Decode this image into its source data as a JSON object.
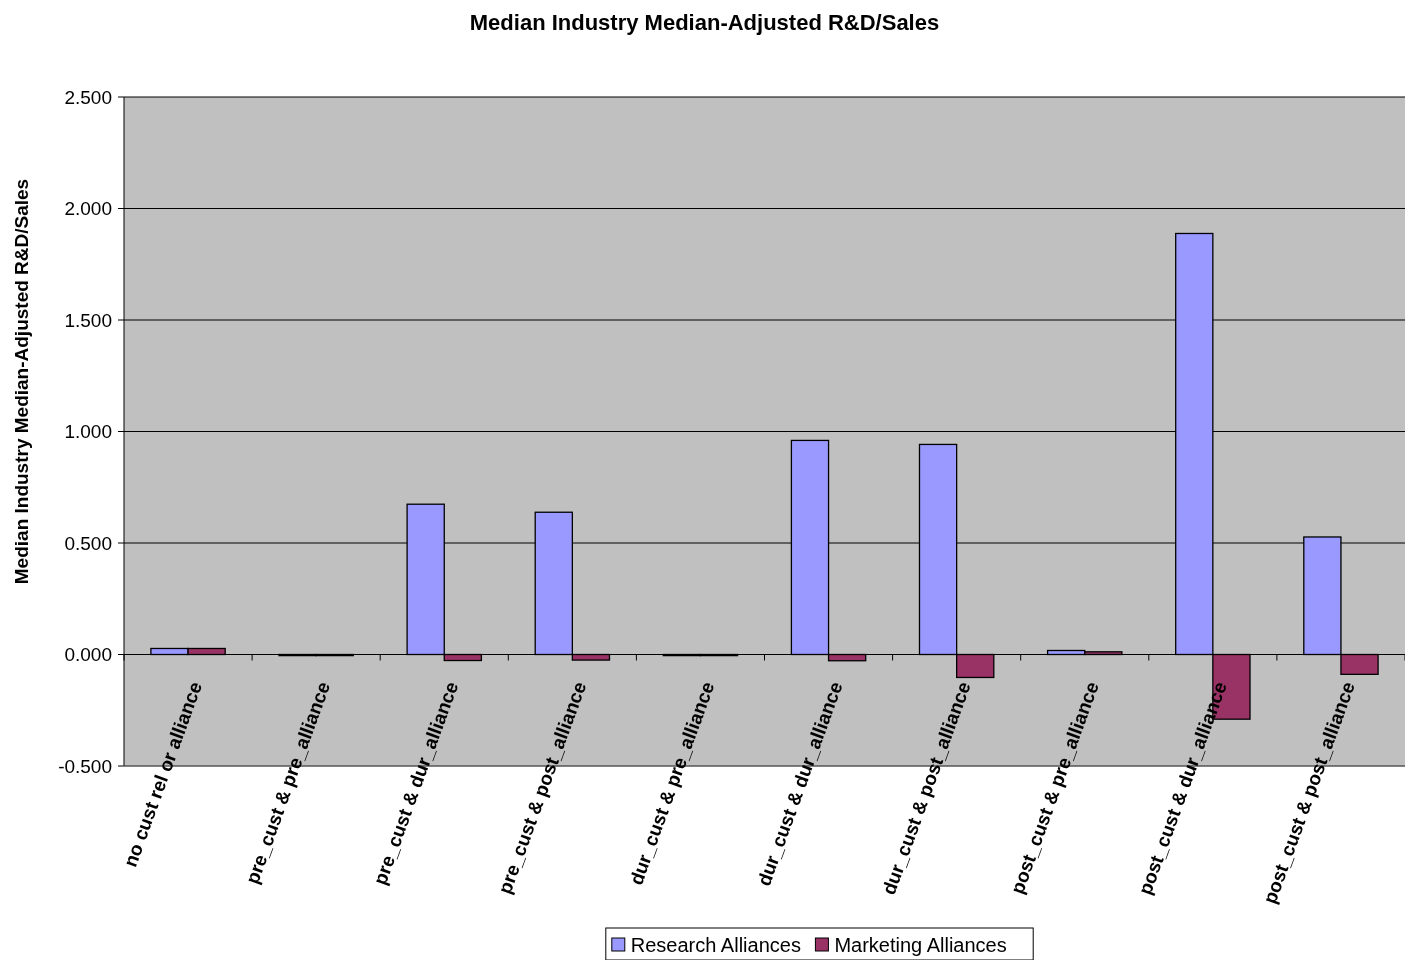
{
  "chart_data": {
    "type": "bar",
    "title": "Median Industry Median-Adjusted R&D/Sales",
    "ylabel": "Median Industry Median-Adjusted R&D/Sales",
    "categories": [
      "no cust rel or alliance",
      "pre_cust & pre_alliance",
      "pre_cust & dur_alliance",
      "pre_cust & post_alliance",
      "dur_cust & pre_alliance",
      "dur_cust & dur_alliance",
      "dur_cust & post_alliance",
      "post_cust & pre_alliance",
      "post_cust & dur_alliance",
      "post_cust & post_alliance"
    ],
    "series": [
      {
        "name": "Research Alliances",
        "color": "#9999ff",
        "values": [
          0.027,
          -0.005,
          0.674,
          0.638,
          -0.005,
          0.96,
          0.942,
          0.018,
          1.888,
          0.527
        ]
      },
      {
        "name": "Marketing Alliances",
        "color": "#993366",
        "values": [
          0.027,
          -0.005,
          -0.027,
          -0.025,
          -0.005,
          -0.028,
          -0.103,
          0.012,
          -0.29,
          -0.089
        ]
      }
    ],
    "ylim": [
      -0.5,
      2.5
    ],
    "yticks": [
      {
        "value": -0.5,
        "label": "-0.500"
      },
      {
        "value": 0,
        "label": "0.000"
      },
      {
        "value": 0.5,
        "label": "0.500"
      },
      {
        "value": 1,
        "label": "1.000"
      },
      {
        "value": 1.5,
        "label": "1.500"
      },
      {
        "value": 2,
        "label": "2.000"
      },
      {
        "value": 2.5,
        "label": "2.500"
      }
    ],
    "grid": "y",
    "legend": "bottom"
  }
}
